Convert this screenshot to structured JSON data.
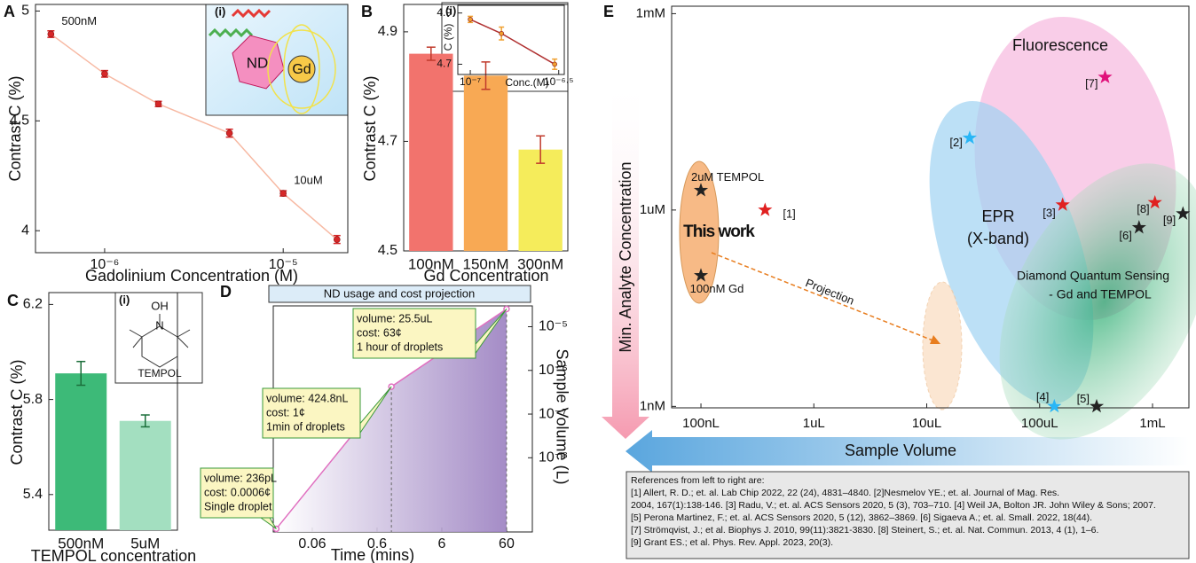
{
  "chart_data": [
    {
      "type": "line",
      "panel": "A",
      "inset_label": "(i)",
      "illustration_labels": [
        "ND",
        "Gd"
      ],
      "xlabel": "Gadolinium Concentration (M)",
      "ylabel": "Contrast C (%)",
      "x": [
        5e-07,
        1e-06,
        2e-06,
        5e-06,
        1e-05,
        2e-05
      ],
      "values": [
        4.895,
        4.714,
        4.577,
        4.444,
        4.17,
        3.96
      ],
      "errors": [
        0.015,
        0.015,
        0.012,
        0.018,
        0.012,
        0.018
      ],
      "point_labels": [
        "500nM",
        null,
        null,
        null,
        "10uM",
        null
      ],
      "color": "#f7b9a3",
      "marker_color": "#d62728",
      "xlog": true,
      "xlim": [
        4.1e-07,
        2.3e-05
      ],
      "xticks": [
        {
          "value": 1e-06,
          "label": "10⁻⁶"
        },
        {
          "value": 1e-05,
          "label": "10⁻⁵"
        }
      ],
      "ylim": [
        3.9,
        5.03
      ],
      "yticks": [
        4,
        4.5,
        5
      ]
    },
    {
      "type": "bar",
      "panel": "B",
      "xlabel": "Gd Concentration",
      "ylabel": "Contrast C (%)",
      "categories": [
        "100nM",
        "150nM",
        "300nM"
      ],
      "values": [
        4.86,
        4.82,
        4.685
      ],
      "errors": [
        0.012,
        0.025,
        0.025
      ],
      "colors": [
        "#f2736d",
        "#f8a954",
        "#f5ec5b"
      ],
      "error_color": "#c0392b",
      "ylim": [
        4.5,
        4.95
      ],
      "yticks": [
        4.5,
        4.7,
        4.9
      ]
    },
    {
      "type": "line",
      "inset_label": "(i)",
      "xlabel": "Conc.(M)",
      "ylabel": "C (%)",
      "x": [
        1e-07,
        1.5e-07,
        3e-07
      ],
      "values": [
        4.875,
        4.82,
        4.7
      ],
      "errors": [
        0.012,
        0.025,
        0.02
      ],
      "color": "#b03030",
      "marker_color": "#f0a030",
      "xlog": true,
      "xlim": [
        8.5e-08,
        3.4e-07
      ],
      "xticks": [
        {
          "value": 1e-07,
          "label": "10⁻⁷"
        },
        {
          "value": 3.1623e-07,
          "label": "10⁻⁶·⁵"
        }
      ],
      "ylim": [
        4.66,
        4.93
      ],
      "yticks": [
        4.7,
        4.9
      ]
    },
    {
      "type": "bar",
      "panel": "C",
      "inset_label": "(i)",
      "structure_labels": [
        "OH",
        "N",
        "TEMPOL"
      ],
      "xlabel": "TEMPOL concentration",
      "ylabel": "Contrast C (%)",
      "categories": [
        "500nM",
        "5uM"
      ],
      "values": [
        5.91,
        5.71
      ],
      "errors": [
        0.05,
        0.025
      ],
      "colors": [
        "#3dba78",
        "#a3dfc0"
      ],
      "error_color": "#1b6e3a",
      "ylim": [
        5.25,
        6.25
      ],
      "yticks": [
        5.4,
        5.8,
        6.2
      ]
    },
    {
      "type": "area",
      "panel": "D",
      "title": "ND usage and cost projection",
      "xlabel": "Time (mins)",
      "ylabel": "Sample Volume (L)",
      "x": [
        0.0167,
        1,
        60
      ],
      "values": [
        2.36e-10,
        4.248e-07,
        2.55e-05
      ],
      "color": "#e070c0",
      "annotations": [
        [
          "volume: 236pL",
          "cost: 0.0006¢",
          "Single droplet"
        ],
        [
          "volume: 424.8nL",
          "cost: 1¢",
          "1min of droplets"
        ],
        [
          "volume: 25.5uL",
          "cost: 63¢",
          "1 hour of droplets"
        ]
      ],
      "xlog": true,
      "ylog": true,
      "xlim": [
        0.015,
        150
      ],
      "xticks": [
        0.06,
        0.6,
        6,
        60
      ],
      "ylim": [
        2e-10,
        3e-05
      ],
      "yticks": [
        {
          "value": 1e-08,
          "label": "10⁻⁸"
        },
        {
          "value": 1e-07,
          "label": "10⁻⁷"
        },
        {
          "value": 1e-06,
          "label": "10⁻⁶"
        },
        {
          "value": 1e-05,
          "label": "10⁻⁵"
        }
      ]
    },
    {
      "type": "scatter",
      "panel": "E",
      "xlabel": "Sample Volume",
      "ylabel": "Min. Analyte Concentration",
      "x": [
        1e-07,
        1e-07,
        3.7e-07,
        2.4e-05,
        0.00016,
        0.000135,
        0.00032,
        0.00076,
        0.00038,
        0.00105,
        0.00186
      ],
      "values": [
        2e-06,
        1e-07,
        1e-06,
        1.26e-05,
        1.2e-06,
        1e-09,
        1e-09,
        5.4e-07,
        0.000107,
        1.3e-06,
        8.8e-07
      ],
      "point_labels": [
        "2uM TEMPOL",
        "100nM Gd",
        "[1]",
        "[2]",
        "[3]",
        "[4]",
        "[5]",
        "[6]",
        "[7]",
        "[8]",
        "[9]"
      ],
      "colors": [
        "#222",
        "#222",
        "#e02020",
        "#29b6f6",
        "#e02020",
        "#29b6f6",
        "#222",
        "#222",
        "#e0107a",
        "#e02020",
        "#222"
      ],
      "regions": [
        "Fluorescence",
        "EPR",
        "(X-band)",
        "Diamond Quantum Sensing",
        "- Gd and TEMPOL",
        "This work",
        "Projection"
      ],
      "xlog": true,
      "ylog": true,
      "xlim": [
        5.5e-08,
        0.0021
      ],
      "xticks": [
        {
          "value": 1e-07,
          "label": "100nL"
        },
        {
          "value": 1e-06,
          "label": "1uL"
        },
        {
          "value": 1e-05,
          "label": "10uL"
        },
        {
          "value": 0.0001,
          "label": "100uL"
        },
        {
          "value": 0.001,
          "label": "1mL"
        }
      ],
      "ylim": [
        9.5e-10,
        0.0013
      ],
      "yticks": [
        {
          "value": 1e-09,
          "label": "1nM"
        },
        {
          "value": 1e-06,
          "label": "1uM"
        },
        {
          "value": 0.001,
          "label": "1mM"
        }
      ]
    }
  ],
  "references": {
    "heading": "References from left to right are:",
    "lines": [
      "[1] Allert, R. D.; et. al. Lab Chip 2022, 22 (24), 4831–4840. [2]Nesmelov YE.; et. al. Journal of Mag. Res.",
      "2004, 167(1):138-146. [3] Radu, V.; et. al. ACS Sensors 2020, 5 (3), 703–710. [4] Weil JA, Bolton JR. John Wiley & Sons; 2007.",
      "[5] Perona Martinez, F.; et. al. ACS Sensors 2020, 5 (12), 3862–3869. [6] Sigaeva A.; et. al. Small. 2022, 18(44).",
      "[7] Strömqvist, J.; et al. Biophys J. 2010, 99(11):3821-3830. [8] Steinert, S.; et. al. Nat. Commun. 2013, 4 (1), 1–6.",
      "[9] Grant ES.; et al. Phys. Rev. Appl. 2023, 20(3)."
    ]
  }
}
